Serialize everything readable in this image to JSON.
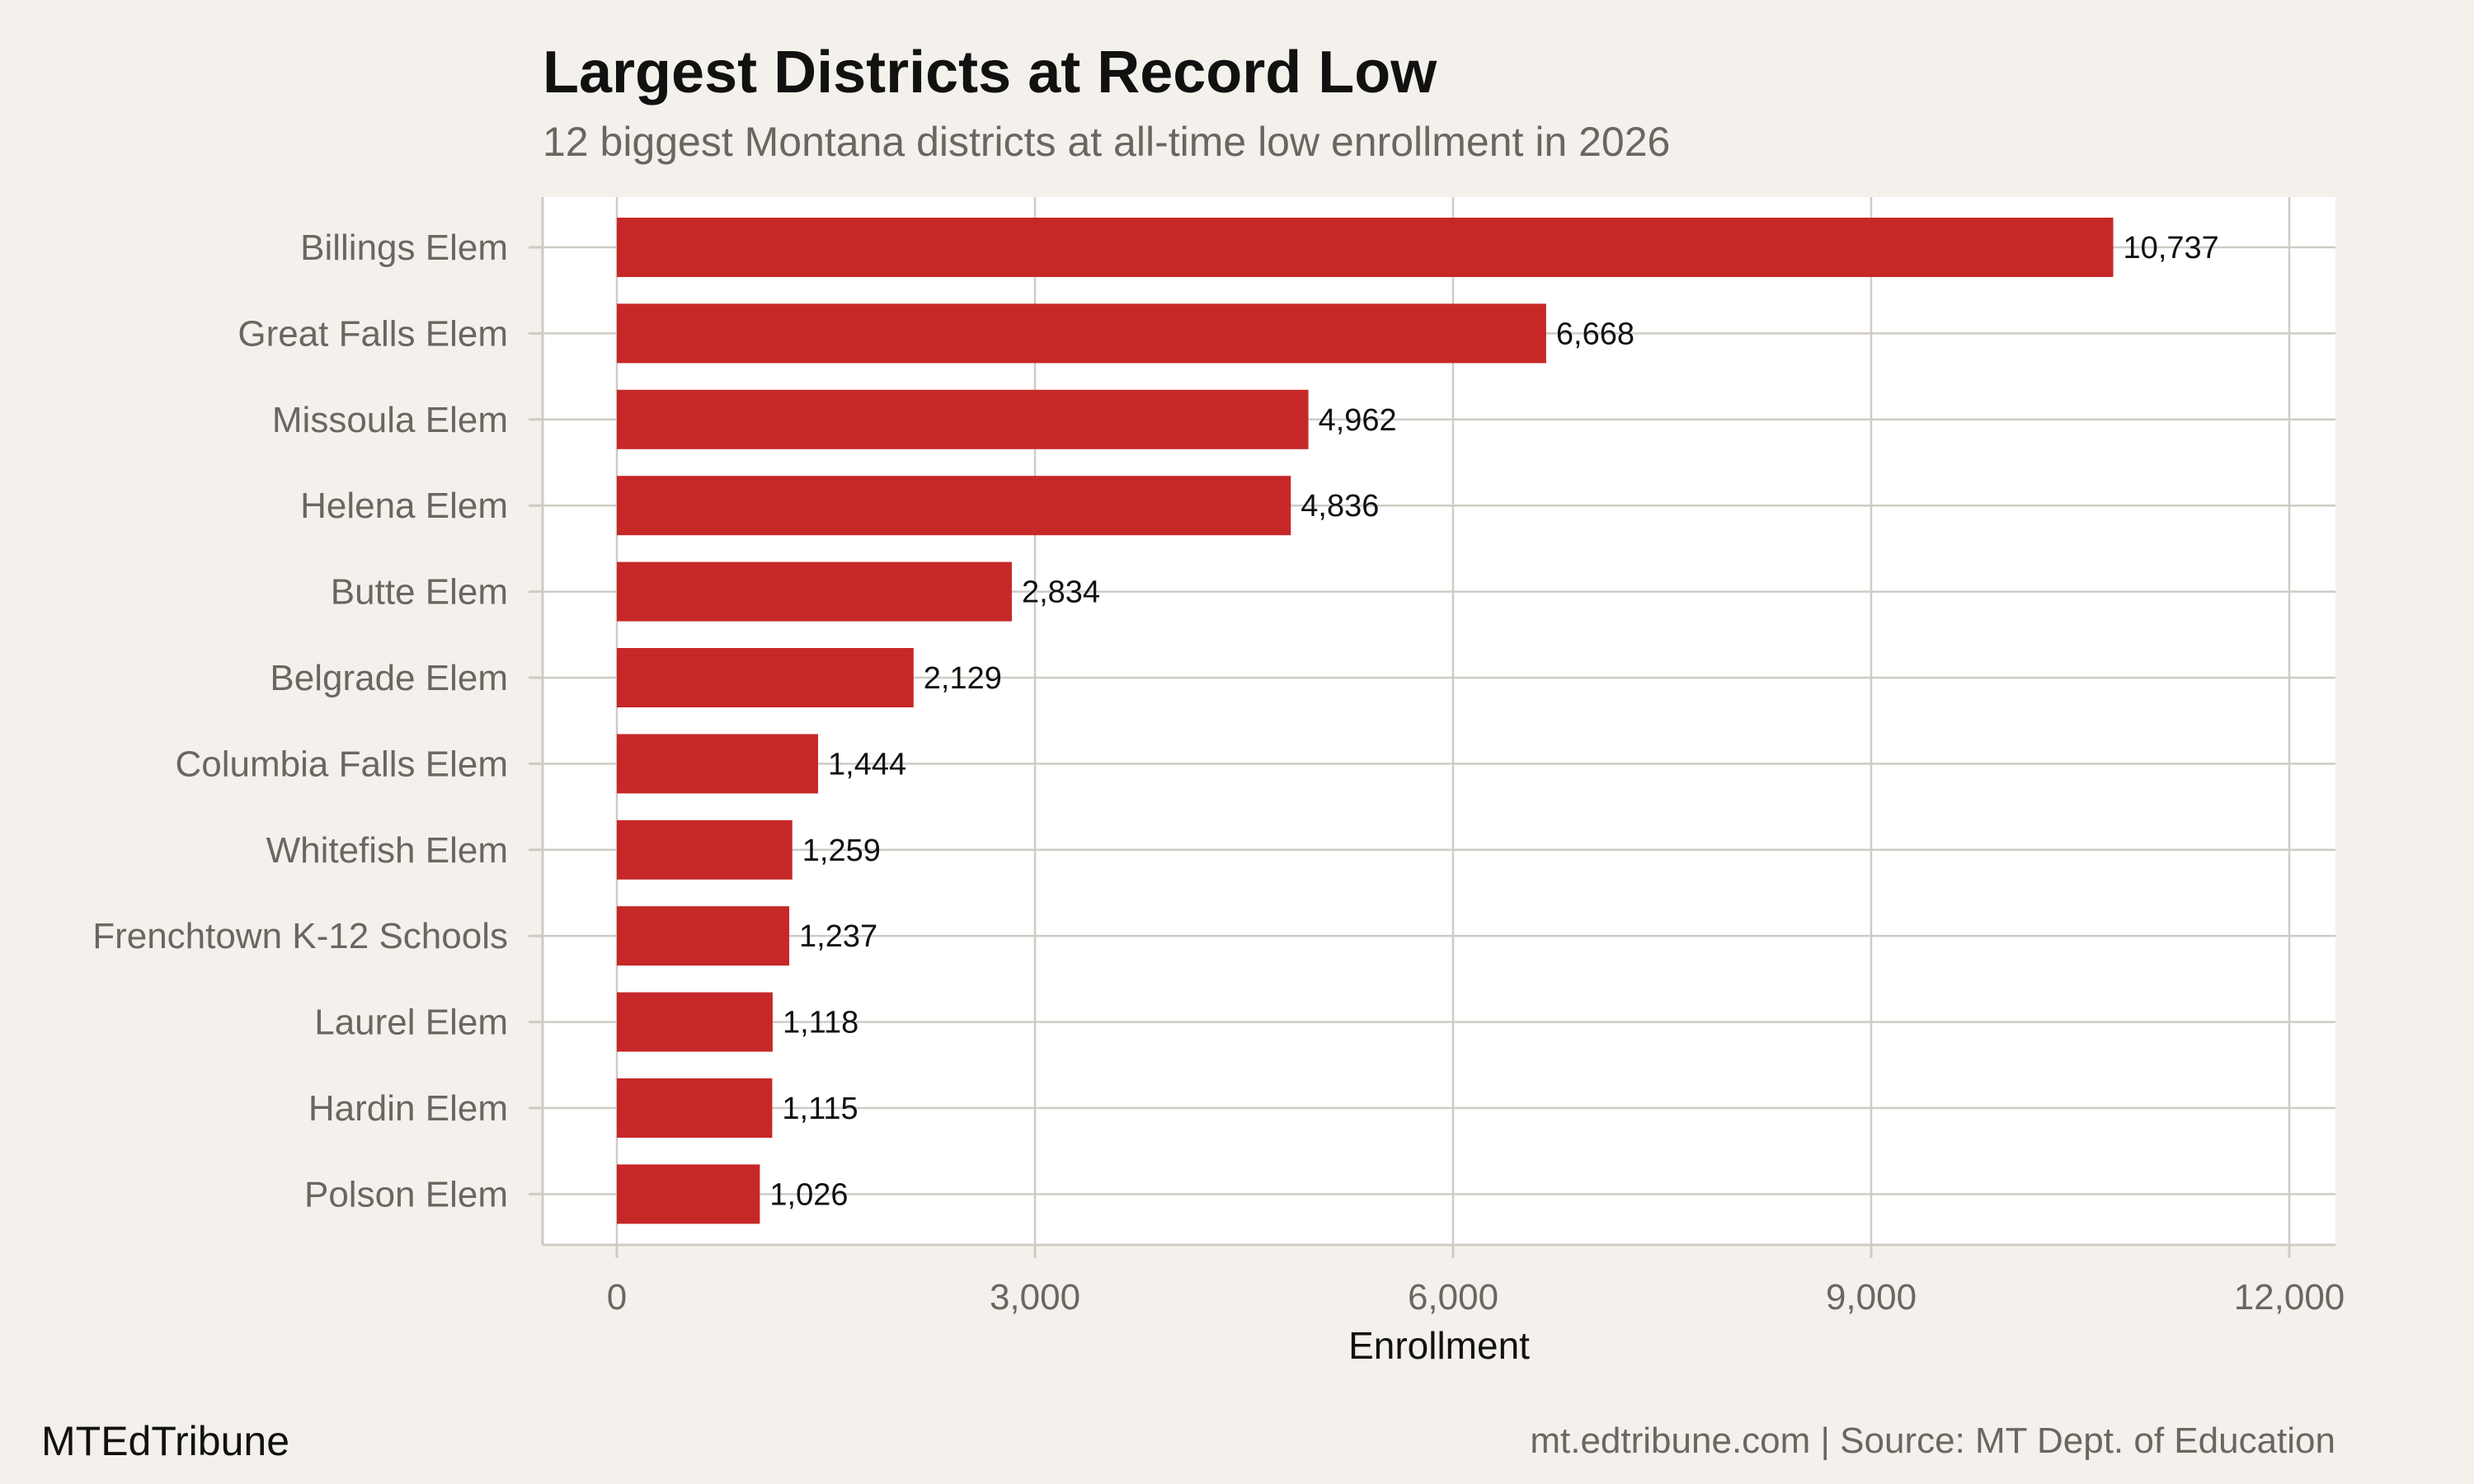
{
  "chart_data": {
    "type": "bar",
    "orientation": "horizontal",
    "title": "Largest Districts at Record Low",
    "subtitle": "12 biggest Montana districts at all-time low enrollment in 2026",
    "xlabel": "Enrollment",
    "ylabel": "",
    "xlim": [
      0,
      12000
    ],
    "xticks": [
      "0",
      "3,000",
      "6,000",
      "9,000",
      "12,000"
    ],
    "xtick_values": [
      0,
      3000,
      6000,
      9000,
      12000
    ],
    "grid": true,
    "categories": [
      "Billings Elem",
      "Great Falls Elem",
      "Missoula Elem",
      "Helena Elem",
      "Butte Elem",
      "Belgrade Elem",
      "Columbia Falls Elem",
      "Whitefish Elem",
      "Frenchtown K-12 Schools",
      "Laurel Elem",
      "Hardin Elem",
      "Polson Elem"
    ],
    "values": [
      10737,
      6668,
      4962,
      4836,
      2834,
      2129,
      1444,
      1259,
      1237,
      1118,
      1115,
      1026
    ],
    "data_labels": [
      "10,737",
      "6,668",
      "4,962",
      "4,836",
      "2,834",
      "2,129",
      "1,444",
      "1,259",
      "1,237",
      "1,118",
      "1,115",
      "1,026"
    ],
    "colors": {
      "bar": "#c62828",
      "background": "#f4f1ec",
      "panel": "#ffffff",
      "grid": "#cfcbc4"
    }
  },
  "footer": {
    "brand": "MTEdTribune",
    "source": "mt.edtribune.com | Source: MT Dept. of Education"
  }
}
